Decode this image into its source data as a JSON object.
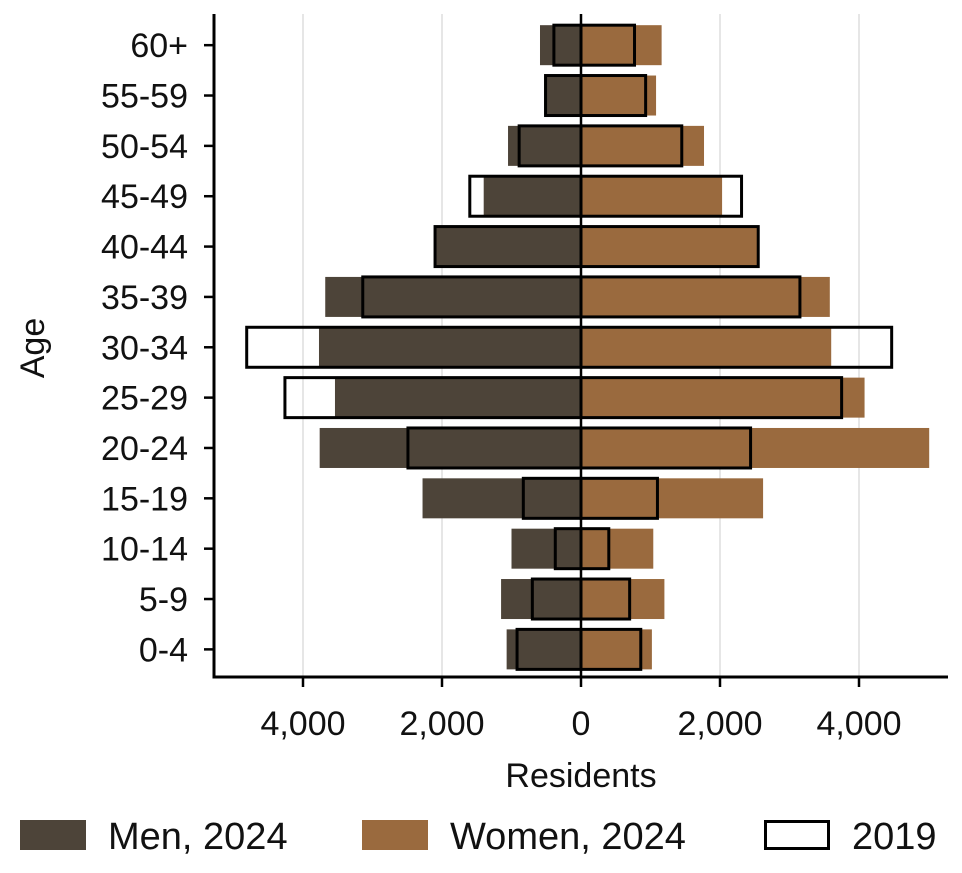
{
  "chart_data": {
    "type": "bar",
    "orientation": "horizontal",
    "layout": "population-pyramid",
    "xlabel": "Residents",
    "ylabel": "Age",
    "xlim": [
      -5300,
      5300
    ],
    "x_ticks": [
      -4000,
      -2000,
      0,
      2000,
      4000
    ],
    "x_tick_labels": [
      "4,000",
      "2,000",
      "0",
      "2,000",
      "4,000"
    ],
    "grid": "vertical",
    "legend_position": "bottom",
    "categories": [
      "0-4",
      "5-9",
      "10-14",
      "15-19",
      "20-24",
      "25-29",
      "30-34",
      "35-39",
      "40-44",
      "45-49",
      "50-54",
      "55-59",
      "60+"
    ],
    "series": [
      {
        "name": "Men, 2024",
        "side": "left",
        "style": "filled",
        "color": "#4d4439",
        "values": [
          1070,
          1150,
          1000,
          2280,
          3760,
          3540,
          3770,
          3680,
          2080,
          1400,
          1050,
          530,
          590
        ]
      },
      {
        "name": "Women, 2024",
        "side": "right",
        "style": "filled",
        "color": "#9a6a3e",
        "values": [
          1020,
          1200,
          1040,
          2620,
          5010,
          4080,
          3600,
          3580,
          2540,
          2030,
          1770,
          1080,
          1160
        ]
      },
      {
        "name": "2019",
        "side": "left",
        "style": "outline",
        "color": "#000000",
        "values": [
          920,
          700,
          370,
          830,
          2490,
          4260,
          4810,
          3140,
          2100,
          1600,
          890,
          510,
          390
        ]
      },
      {
        "name": "2019",
        "side": "right",
        "style": "outline",
        "color": "#000000",
        "values": [
          860,
          700,
          400,
          1100,
          2440,
          3750,
          4470,
          3150,
          2550,
          2310,
          1450,
          930,
          770
        ]
      }
    ]
  },
  "legend": [
    {
      "label": "Men, 2024",
      "style": "filled",
      "color": "#4d4439"
    },
    {
      "label": "Women, 2024",
      "style": "filled",
      "color": "#9a6a3e"
    },
    {
      "label": "2019",
      "style": "outline",
      "color": "#000000"
    }
  ]
}
